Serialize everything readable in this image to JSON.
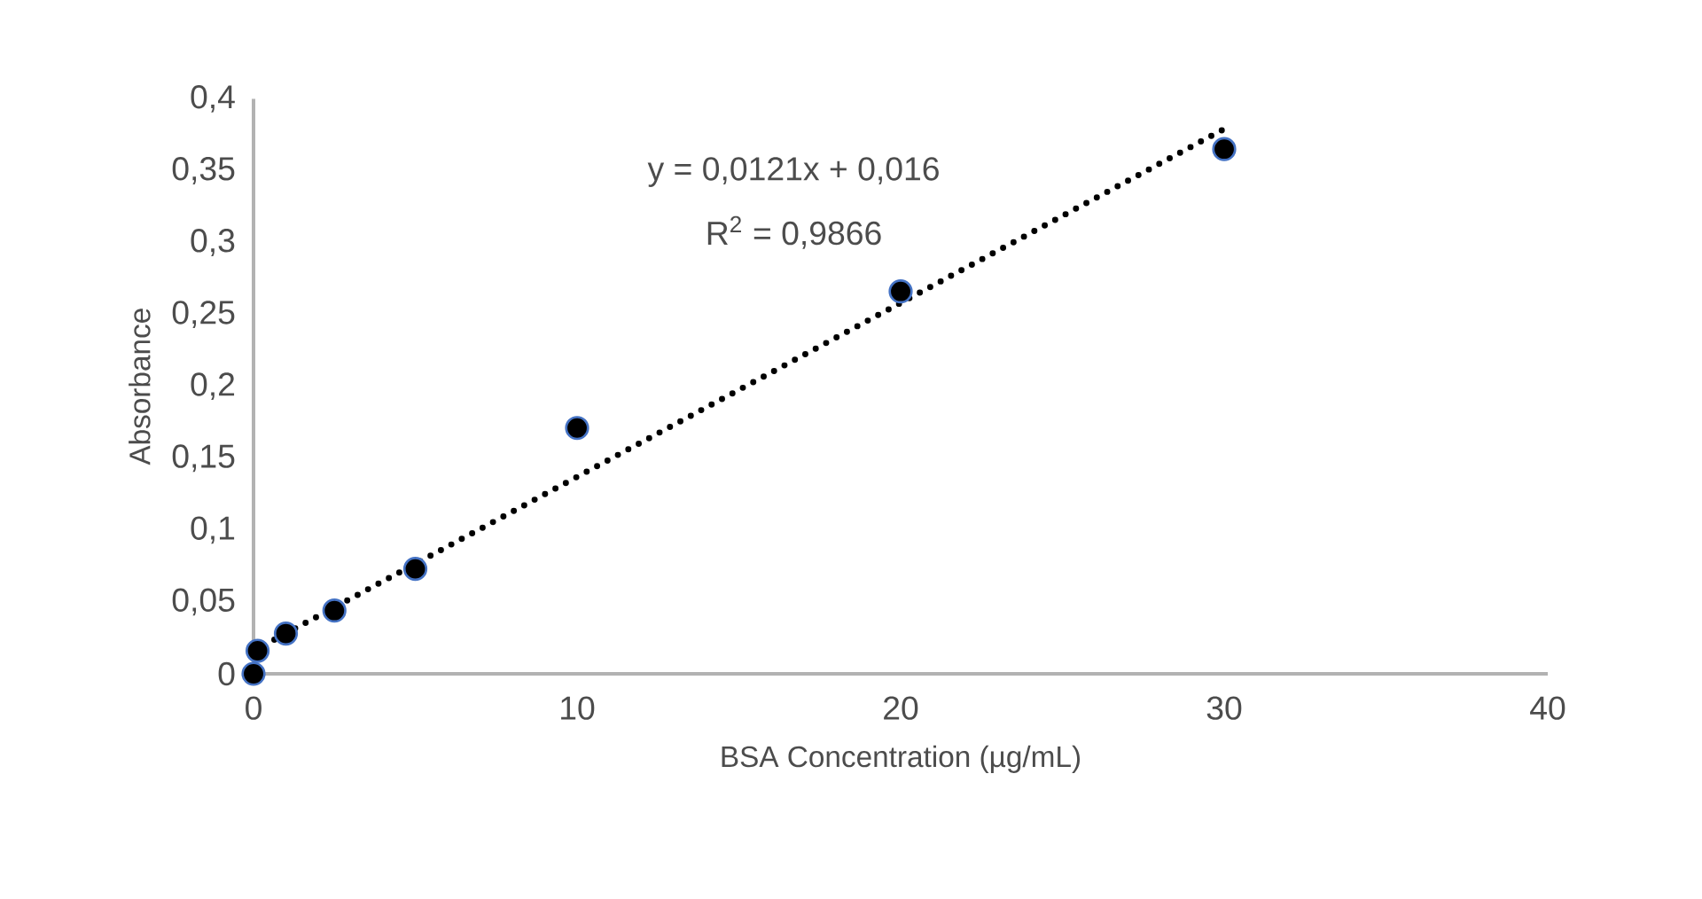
{
  "chart_data": {
    "type": "scatter",
    "xlabel": "BSA Concentration (µg/mL)",
    "ylabel": "Absorbance",
    "series": [
      {
        "color": "#000000",
        "marker": "circle",
        "x": [
          0,
          0.125,
          1,
          2.5,
          5,
          10,
          20,
          30
        ],
        "values": [
          0,
          0.016,
          0.028,
          0.044,
          0.073,
          0.171,
          0.266,
          0.365
        ]
      },
      {
        "type": "line",
        "color": "#000000",
        "line_style": "dotted",
        "marker": "none",
        "x": [
          0,
          30
        ],
        "values": [
          0.016,
          0.379
        ]
      }
    ],
    "grid": false,
    "xlim": [
      0,
      40
    ],
    "xticks": [
      0,
      10,
      20,
      30,
      40
    ],
    "ylim": [
      0,
      0.4
    ],
    "yticks": [
      0,
      {
        "value": 0.05,
        "label": "0,05"
      },
      {
        "value": 0.1,
        "label": "0,1"
      },
      {
        "value": 0.15,
        "label": "0,15"
      },
      {
        "value": 0.2,
        "label": "0,2"
      },
      {
        "value": 0.25,
        "label": "0,25"
      },
      {
        "value": 0.3,
        "label": "0,3"
      },
      {
        "value": 0.35,
        "label": "0,35"
      },
      {
        "value": 0.4,
        "label": "0,4"
      }
    ],
    "annotations": [
      "y = 0,0121x + 0,016",
      "R$^{2}$ = 0,9866"
    ]
  }
}
